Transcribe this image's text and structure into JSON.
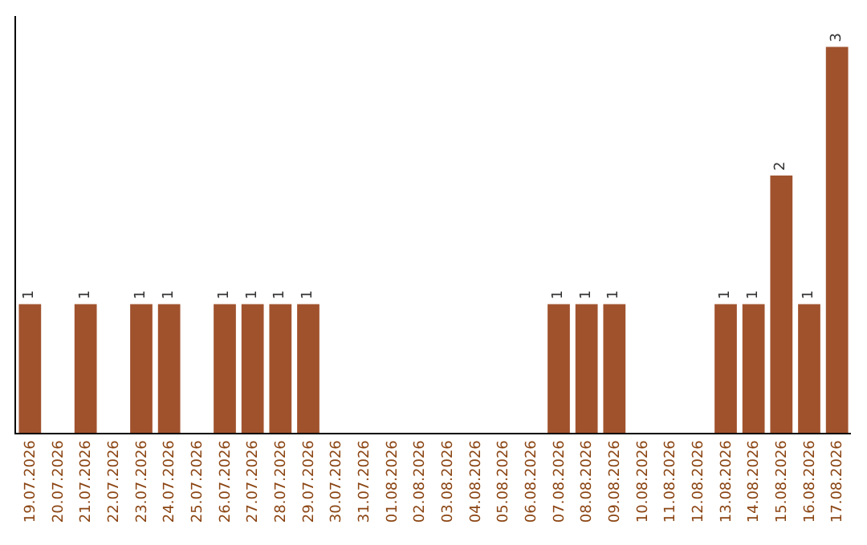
{
  "chart_data": {
    "type": "bar",
    "categories": [
      "19.07.2026",
      "20.07.2026",
      "21.07.2026",
      "22.07.2026",
      "23.07.2026",
      "24.07.2026",
      "25.07.2026",
      "26.07.2026",
      "27.07.2026",
      "28.07.2026",
      "29.07.2026",
      "30.07.2026",
      "31.07.2026",
      "01.08.2026",
      "02.08.2026",
      "03.08.2026",
      "04.08.2026",
      "05.08.2026",
      "06.08.2026",
      "07.08.2026",
      "08.08.2026",
      "09.08.2026",
      "10.08.2026",
      "11.08.2026",
      "12.08.2026",
      "13.08.2026",
      "14.08.2026",
      "15.08.2026",
      "16.08.2026",
      "17.08.2026"
    ],
    "values": [
      1,
      0,
      1,
      0,
      1,
      1,
      0,
      1,
      1,
      1,
      1,
      0,
      0,
      0,
      0,
      0,
      0,
      0,
      0,
      1,
      1,
      1,
      0,
      0,
      0,
      1,
      1,
      2,
      1,
      3
    ],
    "value_labels": [
      "1",
      null,
      "1",
      null,
      "1",
      "1",
      null,
      "1",
      "1",
      "1",
      "1",
      null,
      null,
      null,
      null,
      null,
      null,
      null,
      null,
      "1",
      "1",
      "1",
      null,
      null,
      null,
      "1",
      "1",
      "2",
      "1",
      "3"
    ],
    "color": "#a0522d",
    "tick_labels": "x",
    "legend": false
  }
}
